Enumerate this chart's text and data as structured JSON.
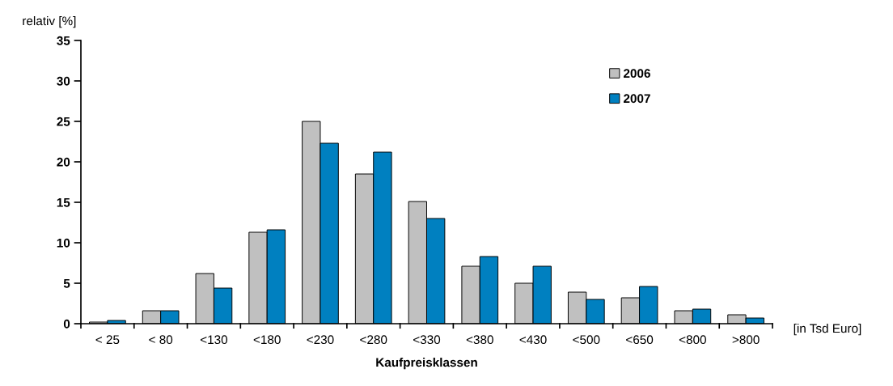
{
  "chart_data": {
    "type": "bar",
    "xlabel": "Kaufpreisklassen",
    "ylabel": "relativ [%]",
    "categories": [
      "< 25",
      "< 80",
      "<130",
      "<180",
      "<230",
      "<280",
      "<330",
      "<380",
      "<430",
      "<500",
      "<650",
      "<800",
      ">800"
    ],
    "series": [
      {
        "name": "2006",
        "color": "#c0c0c0",
        "values": [
          0.2,
          1.6,
          6.2,
          11.3,
          25.0,
          18.5,
          15.1,
          7.1,
          5.0,
          3.9,
          3.2,
          1.6,
          1.1
        ]
      },
      {
        "name": "2007",
        "color": "#0080c0",
        "values": [
          0.4,
          1.6,
          4.4,
          11.6,
          22.3,
          21.2,
          13.0,
          8.3,
          7.1,
          3.0,
          4.6,
          1.8,
          0.7
        ]
      }
    ],
    "ylim": [
      0,
      35
    ],
    "yticks": [
      0,
      5,
      10,
      15,
      20,
      25,
      30,
      35
    ],
    "annotations": [
      "[in Tsd Euro]"
    ],
    "legend": "top right",
    "grid": false
  }
}
